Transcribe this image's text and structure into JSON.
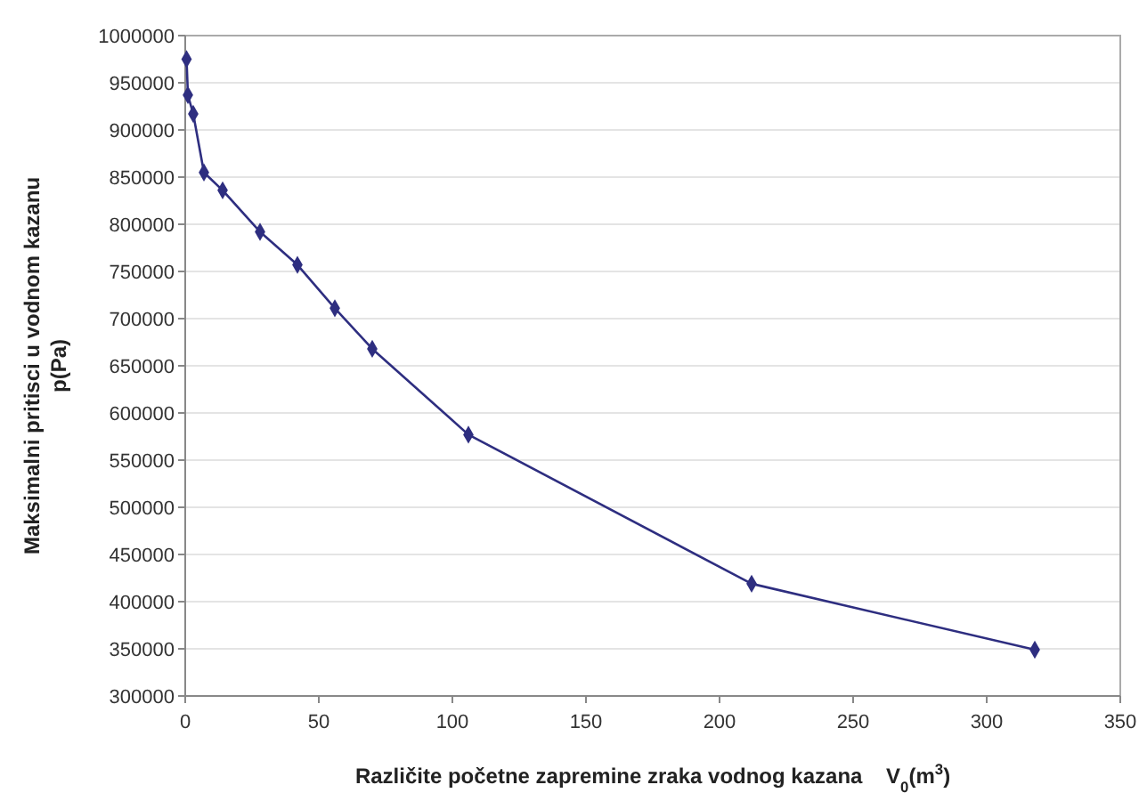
{
  "chart_data": {
    "type": "line",
    "xlabel": "Različite početne zapremine zraka vodnog kazana    V$_{0}$(m$^{3}$)",
    "ylabel": "Maksimalni pritisci u vodnom kazanu\np(Pa)",
    "x": [
      0.5,
      1,
      3,
      7,
      14,
      28,
      42,
      56,
      70,
      106,
      212,
      318
    ],
    "series": [
      {
        "color": "#2e2e80",
        "values": [
          975000,
          937000,
          917000,
          855000,
          836000,
          792000,
          757000,
          711000,
          668000,
          577000,
          419000,
          349000
        ]
      }
    ],
    "xlim": [
      0,
      350
    ],
    "xticks": [
      0,
      50,
      100,
      150,
      200,
      250,
      300,
      350
    ],
    "ylim": [
      300000,
      1000000
    ],
    "yticks": [
      300000,
      350000,
      400000,
      450000,
      500000,
      550000,
      600000,
      650000,
      700000,
      750000,
      800000,
      850000,
      900000,
      950000,
      1000000
    ],
    "grid": "y",
    "marker": "diamond",
    "line_style": "solid"
  }
}
